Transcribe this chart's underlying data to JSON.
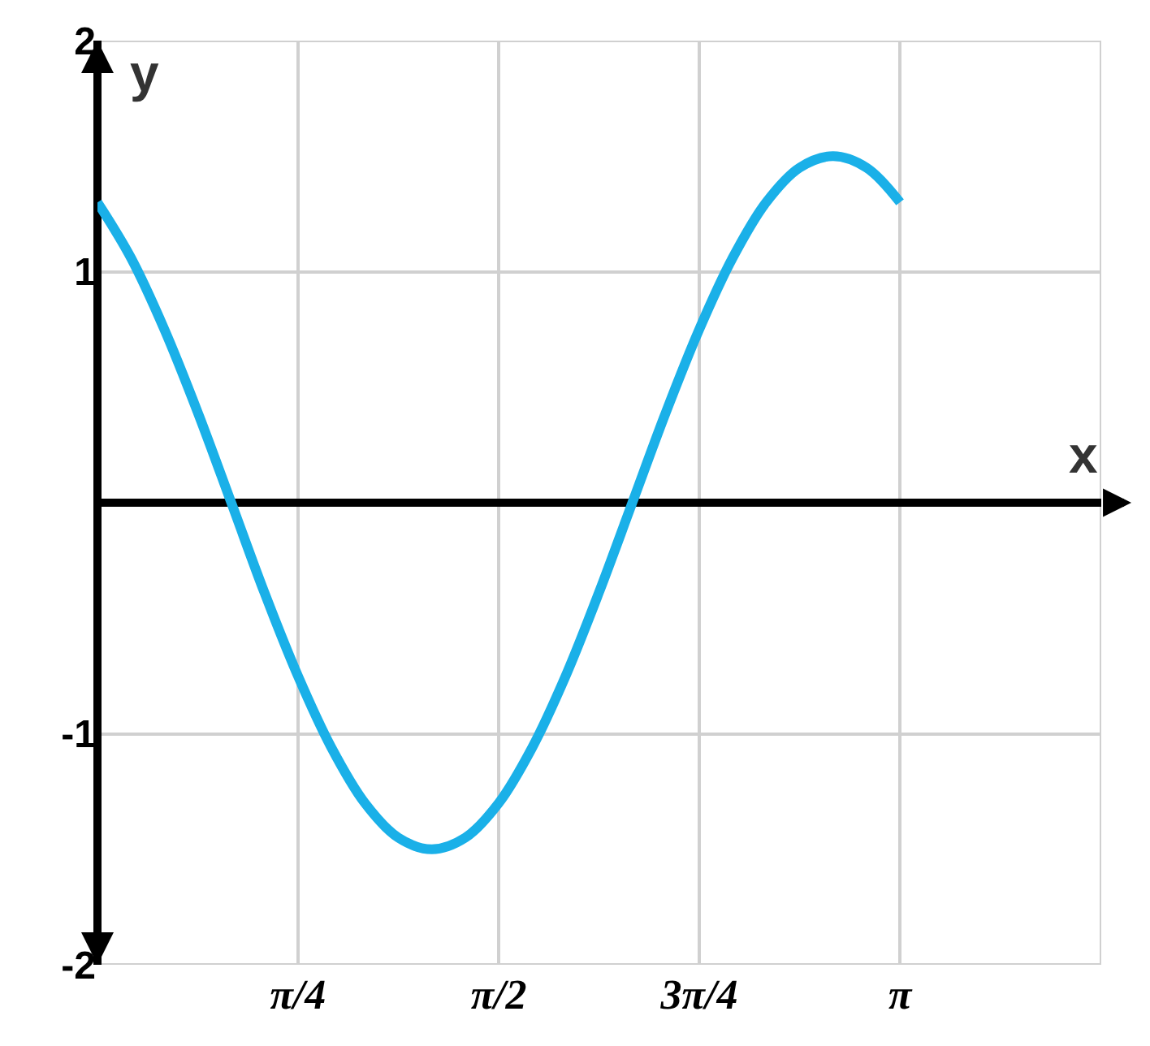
{
  "chart_data": {
    "type": "line",
    "xlabel": "x",
    "ylabel": "y",
    "x": [
      0,
      0.131,
      0.262,
      0.393,
      0.524,
      0.654,
      0.785,
      0.916,
      1.047,
      1.178,
      1.309,
      1.44,
      1.571,
      1.702,
      1.833,
      1.963,
      2.094,
      2.225,
      2.356,
      2.487,
      2.618,
      2.749,
      2.88,
      3.011,
      3.142
    ],
    "series": [
      {
        "color": "#1ab0e8",
        "values": [
          1.3,
          1.06,
          0.75,
          0.39,
          0,
          -0.39,
          -0.75,
          -1.06,
          -1.3,
          -1.45,
          -1.5,
          -1.45,
          -1.3,
          -1.06,
          -0.75,
          -0.39,
          0,
          0.39,
          0.75,
          1.06,
          1.3,
          1.45,
          1.5,
          1.45,
          1.3
        ]
      }
    ],
    "xlim": [
      0,
      3.93
    ],
    "ylim": [
      -2,
      2
    ],
    "xticks": [
      {
        "value": 0.785,
        "label": "π/4"
      },
      {
        "value": 1.571,
        "label": "π/2"
      },
      {
        "value": 2.356,
        "label": "3π/4"
      },
      {
        "value": 3.142,
        "label": "π"
      },
      {
        "value": 3.927,
        "label": null
      }
    ],
    "yticks": [
      -2,
      -1,
      {
        "value": 0,
        "label": null
      },
      1,
      2
    ],
    "grid": true,
    "marker": "none",
    "line_style": "solid"
  }
}
